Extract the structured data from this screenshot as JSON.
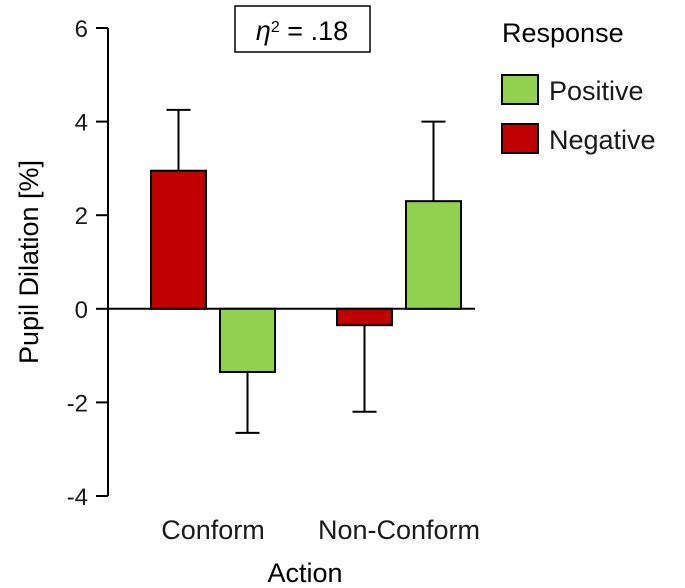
{
  "chart_data": {
    "type": "bar",
    "title": "",
    "xlabel": "Action",
    "ylabel": "Pupil Dilation [%]",
    "ylim": [
      -4,
      6
    ],
    "yticks": [
      6,
      4,
      2,
      0,
      -2,
      -4
    ],
    "ytick_labels": [
      "6",
      "4",
      "2",
      "0",
      "-2",
      "-4"
    ],
    "categories": [
      "Conform",
      "Non-Conform"
    ],
    "series": [
      {
        "name": "Negative",
        "color": "#c00000",
        "values": [
          2.95,
          -0.35
        ],
        "errors": [
          1.3,
          1.85
        ],
        "error_direction": "outward"
      },
      {
        "name": "Positive",
        "color": "#92d050",
        "values": [
          -1.35,
          2.3
        ],
        "errors": [
          1.3,
          1.7
        ],
        "error_direction": "outward"
      }
    ],
    "legend": {
      "title": "Response",
      "placement": "top-right",
      "entries": [
        {
          "name": "Positive",
          "color": "#92d050"
        },
        {
          "name": "Negative",
          "color": "#c00000"
        }
      ]
    },
    "annotation": {
      "symbol": "η",
      "superscript": "2",
      "rest": " = .18"
    },
    "grid": false
  }
}
